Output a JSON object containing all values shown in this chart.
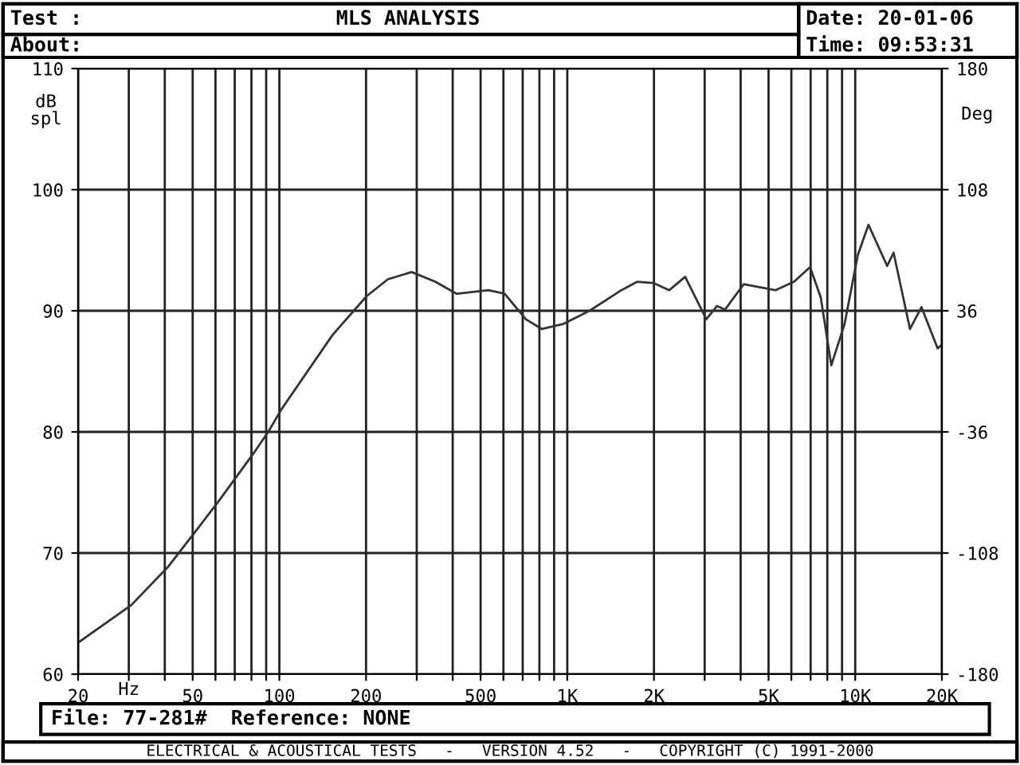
{
  "chart_data": {
    "type": "line",
    "title": "MLS ANALYSIS",
    "annotations": [
      "Test :",
      "About:",
      "Date: 20-01-06",
      "Time: 09:53:31",
      "File: 77-281#  Reference: NONE",
      "ELECTRICAL & ACOUSTICAL TESTS   -   VERSION 4.52   -   COPYRIGHT (C) 1991-2000"
    ],
    "xlabel": "Hz",
    "ylabel": "dB\nspl",
    "y2label": "Deg",
    "log": "x",
    "grid": true,
    "marker": "none",
    "line_style": "solid",
    "xlim": [
      20,
      20000
    ],
    "ylim": [
      60,
      110
    ],
    "y2lim": [
      -180,
      180
    ],
    "xticks": [
      20,
      {
        "value": 30,
        "label": null
      },
      {
        "value": 40,
        "label": null
      },
      50,
      {
        "value": 60,
        "label": null
      },
      {
        "value": 70,
        "label": null
      },
      {
        "value": 80,
        "label": null
      },
      {
        "value": 90,
        "label": null
      },
      100,
      200,
      {
        "value": 300,
        "label": null
      },
      {
        "value": 400,
        "label": null
      },
      500,
      {
        "value": 600,
        "label": null
      },
      {
        "value": 700,
        "label": null
      },
      {
        "value": 800,
        "label": null
      },
      {
        "value": 900,
        "label": null
      },
      {
        "value": 1000,
        "label": "1K"
      },
      {
        "value": 2000,
        "label": "2K"
      },
      {
        "value": 3000,
        "label": null
      },
      {
        "value": 4000,
        "label": null
      },
      {
        "value": 5000,
        "label": "5K"
      },
      {
        "value": 6000,
        "label": null
      },
      {
        "value": 7000,
        "label": null
      },
      {
        "value": 8000,
        "label": null
      },
      {
        "value": 9000,
        "label": null
      },
      {
        "value": 10000,
        "label": "10K"
      },
      {
        "value": 20000,
        "label": "20K"
      }
    ],
    "yticks": [
      60,
      70,
      80,
      90,
      100,
      110
    ],
    "y2ticks": [
      -180,
      -108,
      -36,
      36,
      108,
      180
    ],
    "series": [
      {
        "color": "#333333",
        "x": [
          20,
          30.6,
          41.2,
          51.2,
          61.2,
          82.3,
          91.5,
          101.9,
          153,
          200.8,
          238,
          288,
          348,
          413,
          490,
          533,
          606,
          718,
          815,
          966,
          1194,
          1541,
          1750,
          1990,
          2260,
          2567,
          3040,
          3310,
          3530,
          4100,
          5280,
          6130,
          6970,
          7590,
          8260,
          9180,
          10210,
          11120,
          12910,
          13590,
          15490,
          16990,
          19320,
          20000
        ],
        "values": [
          62.6,
          65.7,
          68.9,
          71.8,
          74.2,
          78.4,
          80.0,
          81.9,
          88.0,
          91.2,
          92.6,
          93.2,
          92.4,
          91.4,
          91.6,
          91.7,
          91.4,
          89.3,
          88.5,
          88.9,
          90.0,
          91.7,
          92.4,
          92.3,
          91.7,
          92.8,
          89.3,
          90.4,
          90.1,
          92.2,
          91.7,
          92.4,
          93.6,
          91.1,
          85.5,
          88.9,
          94.6,
          97.1,
          93.7,
          94.8,
          88.5,
          90.3,
          86.9,
          87.2
        ]
      }
    ]
  }
}
